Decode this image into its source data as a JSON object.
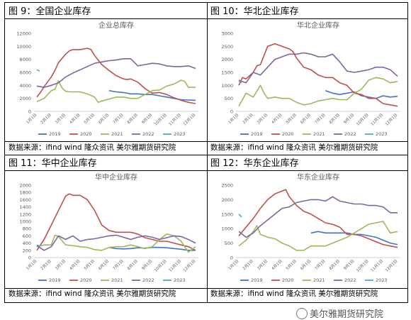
{
  "captions": [
    "图 9：全国企业库存",
    "图 10：华北企业库存",
    "图 11：华中企业库存",
    "图 12：华东企业库存"
  ],
  "source_text": "数据来源：ifind wind  隆众资讯  美尔雅期货研究院",
  "watermark": "美尔雅期货研究院",
  "chart_data": [
    {
      "type": "line",
      "title": "企业总库存",
      "ylim": [
        0,
        12000
      ],
      "yticks": [
        0,
        2000,
        4000,
        6000,
        8000,
        10000,
        12000
      ],
      "x_tick_labels": [
        "1月1日",
        "2月1日",
        "3月1日",
        "4月1日",
        "5月1日",
        "6月1日",
        "7月1日",
        "8月1日",
        "9月1日",
        "10月1日",
        "11月1日",
        "12月1日"
      ],
      "series": [
        {
          "name": "2019",
          "color": "#4472C4",
          "x": [
            6,
            6.5,
            7,
            7.5,
            8,
            8.5,
            9,
            9.5,
            10,
            10.5,
            11,
            11.5,
            12
          ],
          "values": [
            3200,
            3000,
            2900,
            2700,
            2700,
            2600,
            2600,
            2400,
            2200,
            2000,
            1800,
            1750,
            1700
          ]
        },
        {
          "name": "2020",
          "color": "#C0504D",
          "x": [
            1,
            1.25,
            1.5,
            2,
            2.25,
            2.5,
            3,
            3.25,
            3.5,
            3.75,
            4,
            4.25,
            4.5,
            4.75,
            5,
            5.5,
            6,
            6.5,
            7,
            7.25,
            7.5,
            8,
            8.5,
            9,
            9.5,
            10,
            10.5,
            11,
            11.5,
            12
          ],
          "values": [
            2200,
            2900,
            3800,
            5300,
            6300,
            7500,
            8800,
            9300,
            9500,
            9500,
            9500,
            9600,
            9700,
            9500,
            8600,
            7200,
            6300,
            5500,
            5000,
            4900,
            5000,
            4500,
            3500,
            2800,
            2900,
            2600,
            2100,
            1700,
            1400,
            1200
          ]
        },
        {
          "name": "2021",
          "color": "#9BBB59",
          "x": [
            1,
            1.5,
            2,
            2.25,
            2.5,
            2.75,
            3,
            3.25,
            3.5,
            4,
            4.5,
            5,
            5.25,
            5.5,
            6,
            6.5,
            7,
            7.5,
            8,
            8.5,
            9,
            9.5,
            10,
            10.5,
            11,
            11.25,
            11.5,
            12
          ],
          "values": [
            1500,
            2000,
            3200,
            3400,
            4700,
            3600,
            3100,
            3000,
            3000,
            3000,
            2700,
            2200,
            1400,
            1600,
            1900,
            2200,
            2200,
            2000,
            2000,
            2600,
            3200,
            3300,
            3900,
            4200,
            4800,
            4600,
            3700,
            3700
          ]
        },
        {
          "name": "2022",
          "color": "#8064A2",
          "x": [
            1,
            1.5,
            2,
            2.5,
            3,
            3.5,
            4,
            4.5,
            5,
            5.5,
            6,
            6.5,
            7,
            7.5,
            8,
            8.5,
            9,
            9.5,
            10,
            10.5,
            11,
            11.5,
            12
          ],
          "values": [
            3900,
            3700,
            4000,
            4400,
            5300,
            5900,
            6400,
            6900,
            7400,
            7600,
            7800,
            7900,
            8100,
            8100,
            7000,
            7200,
            7400,
            7300,
            7000,
            6900,
            6900,
            7000,
            6600
          ]
        },
        {
          "name": "2023",
          "color": "#4BACC6",
          "x": [
            1,
            1.2
          ],
          "values": [
            6400,
            6200
          ]
        }
      ]
    },
    {
      "type": "line",
      "title": "华北企业库存",
      "ylim": [
        0,
        3000
      ],
      "yticks": [
        0,
        500,
        1000,
        1500,
        2000,
        2500,
        3000
      ],
      "x_tick_labels": [
        "1月1日",
        "2月1日",
        "3月1日",
        "4月1日",
        "5月1日",
        "6月1日",
        "7月1日",
        "8月1日",
        "9月1日",
        "10月1日",
        "11月1日",
        "12月1日"
      ],
      "series": [
        {
          "name": "2019",
          "color": "#4472C4",
          "x": [
            7,
            7.5,
            8,
            8.5,
            9,
            9.5,
            10,
            10.5,
            11,
            11.5,
            12
          ],
          "values": [
            800,
            700,
            650,
            700,
            750,
            600,
            550,
            500,
            600,
            550,
            580
          ]
        },
        {
          "name": "2020",
          "color": "#C0504D",
          "x": [
            1,
            1.25,
            1.5,
            2,
            2.25,
            2.5,
            3,
            3.5,
            4,
            4.25,
            4.5,
            4.75,
            5,
            5.5,
            6,
            6.5,
            7,
            7.5,
            8,
            8.5,
            9,
            9.5,
            10,
            10.5,
            11,
            11.5,
            12
          ],
          "values": [
            1000,
            1300,
            1250,
            1500,
            1750,
            1800,
            2500,
            2600,
            2500,
            2450,
            2400,
            2300,
            2050,
            1700,
            1600,
            1400,
            1300,
            1300,
            1100,
            1000,
            700,
            650,
            500,
            500,
            300,
            250,
            200
          ]
        },
        {
          "name": "2021",
          "color": "#9BBB59",
          "x": [
            1,
            1.5,
            2,
            2.5,
            2.75,
            3,
            3.5,
            4,
            4.5,
            5,
            5.5,
            6,
            6.5,
            7,
            7.5,
            8,
            8.5,
            9,
            9.5,
            10,
            10.5,
            11,
            11.5,
            12
          ],
          "values": [
            200,
            700,
            550,
            1000,
            700,
            500,
            550,
            500,
            500,
            350,
            250,
            300,
            400,
            450,
            500,
            450,
            450,
            700,
            850,
            1200,
            1300,
            1250,
            1100,
            1150
          ]
        },
        {
          "name": "2022",
          "color": "#8064A2",
          "x": [
            1,
            1.5,
            2,
            2.5,
            3,
            3.5,
            4,
            4.5,
            5,
            5.5,
            6,
            6.5,
            7,
            7.5,
            8,
            8.5,
            9,
            9.5,
            10,
            10.5,
            11,
            11.5,
            12
          ],
          "values": [
            1200,
            1100,
            1500,
            1400,
            1700,
            2000,
            2100,
            2200,
            2200,
            2250,
            2200,
            2100,
            2100,
            2200,
            1900,
            1550,
            1500,
            1550,
            1600,
            1700,
            1700,
            1600,
            1350
          ]
        },
        {
          "name": "2023",
          "color": "#4BACC6",
          "x": [
            1,
            1.2
          ],
          "values": [
            1150,
            1100
          ]
        }
      ]
    },
    {
      "type": "line",
      "title": "华中企业库存",
      "ylim": [
        0,
        2000
      ],
      "yticks": [
        0,
        200,
        400,
        600,
        800,
        1000,
        1200,
        1400,
        1600,
        1800,
        2000
      ],
      "x_tick_labels": [
        "1月1日",
        "2月1日",
        "3月1日",
        "4月1日",
        "5月1日",
        "6月1日",
        "7月1日",
        "8月1日",
        "9月1日",
        "10月1日",
        "11月1日",
        "12月1日"
      ],
      "series": [
        {
          "name": "2019",
          "color": "#4472C4",
          "x": [
            6,
            6.5,
            7,
            7.5,
            8,
            8.5,
            9,
            9.5,
            10,
            10.5,
            11,
            11.5,
            12
          ],
          "values": [
            280,
            250,
            240,
            250,
            270,
            260,
            280,
            280,
            270,
            250,
            230,
            200,
            200
          ]
        },
        {
          "name": "2020",
          "color": "#C0504D",
          "x": [
            1,
            1.5,
            2,
            2.5,
            3,
            3.25,
            3.5,
            4,
            4.5,
            5,
            5.5,
            6,
            6.5,
            7,
            7.5,
            8,
            8.5,
            9,
            9.5,
            10,
            10.5,
            11,
            11.5,
            12
          ],
          "values": [
            200,
            500,
            900,
            1300,
            1700,
            1760,
            1720,
            1720,
            1600,
            1300,
            900,
            750,
            700,
            700,
            700,
            650,
            550,
            500,
            450,
            450,
            400,
            350,
            300,
            200
          ]
        },
        {
          "name": "2021",
          "color": "#9BBB59",
          "x": [
            1,
            1.5,
            2,
            2.25,
            2.5,
            3,
            3.5,
            4,
            4.5,
            5,
            5.5,
            6,
            6.5,
            7,
            7.5,
            8,
            8.5,
            9,
            9.5,
            10,
            10.5,
            11,
            11.5,
            12
          ],
          "values": [
            300,
            350,
            350,
            620,
            580,
            350,
            330,
            300,
            280,
            220,
            200,
            280,
            300,
            300,
            350,
            300,
            250,
            300,
            500,
            650,
            600,
            450,
            150,
            300
          ]
        },
        {
          "name": "2022",
          "color": "#8064A2",
          "x": [
            1,
            1.5,
            2,
            2.5,
            3,
            3.5,
            4,
            4.5,
            5,
            5.5,
            6,
            6.5,
            7,
            7.5,
            8,
            8.5,
            9,
            9.5,
            10,
            10.5,
            11,
            11.5,
            12
          ],
          "values": [
            330,
            200,
            300,
            600,
            500,
            600,
            450,
            500,
            520,
            560,
            600,
            620,
            560,
            500,
            560,
            600,
            560,
            500,
            550,
            600,
            580,
            500,
            400
          ]
        },
        {
          "name": "2023",
          "color": "#4BACC6",
          "x": [
            1,
            1.2
          ],
          "values": [
            350,
            320
          ]
        }
      ]
    },
    {
      "type": "line",
      "title": "华东企业库存",
      "ylim": [
        0,
        2500
      ],
      "yticks": [
        0,
        500,
        1000,
        1500,
        2000,
        2500
      ],
      "x_tick_labels": [
        "1月1日",
        "2月1日",
        "3月1日",
        "4月1日",
        "5月1日",
        "6月1日",
        "7月1日",
        "8月1日",
        "9月1日",
        "10月1日",
        "11月1日",
        "12月1日"
      ],
      "series": [
        {
          "name": "2019",
          "color": "#4472C4",
          "x": [
            6,
            6.5,
            7,
            7.5,
            8,
            8.5,
            9,
            9.5,
            10,
            10.5,
            11,
            11.5,
            12
          ],
          "values": [
            850,
            900,
            850,
            850,
            850,
            850,
            800,
            800,
            750,
            700,
            600,
            500,
            450
          ]
        },
        {
          "name": "2020",
          "color": "#C0504D",
          "x": [
            1,
            1.5,
            2,
            2.5,
            3,
            3.5,
            4,
            4.25,
            4.5,
            5,
            5.5,
            6,
            6.5,
            7,
            7.5,
            8,
            8.5,
            9,
            9.5,
            10,
            10.5,
            11,
            11.5,
            12
          ],
          "values": [
            750,
            1050,
            1350,
            1700,
            2000,
            2200,
            2300,
            2350,
            2100,
            1800,
            1600,
            1500,
            1350,
            1200,
            1150,
            1050,
            800,
            800,
            750,
            650,
            550,
            450,
            400,
            350
          ]
        },
        {
          "name": "2021",
          "color": "#9BBB59",
          "x": [
            1,
            1.5,
            2,
            2.25,
            2.5,
            3,
            3.5,
            4,
            4.5,
            5,
            5.5,
            6,
            6.5,
            7,
            7.5,
            8,
            8.5,
            9,
            9.5,
            10,
            10.5,
            11,
            11.5,
            12
          ],
          "values": [
            400,
            600,
            900,
            1100,
            800,
            700,
            650,
            500,
            400,
            250,
            250,
            400,
            400,
            400,
            500,
            600,
            700,
            850,
            1000,
            1150,
            1200,
            1250,
            850,
            900
          ]
        },
        {
          "name": "2022",
          "color": "#8064A2",
          "x": [
            1,
            1.5,
            2,
            2.5,
            3,
            3.5,
            4,
            4.5,
            5,
            5.5,
            6,
            6.5,
            7,
            7.5,
            8,
            8.5,
            9,
            9.5,
            10,
            10.5,
            11,
            11.5,
            12
          ],
          "values": [
            900,
            700,
            850,
            1100,
            1300,
            1500,
            1700,
            1750,
            1900,
            1950,
            2000,
            2000,
            1950,
            2100,
            1950,
            1900,
            1850,
            1850,
            1800,
            1800,
            1750,
            1550,
            1550
          ]
        },
        {
          "name": "2023",
          "color": "#4BACC6",
          "x": [
            1,
            1.2
          ],
          "values": [
            1500,
            1400
          ]
        }
      ]
    }
  ]
}
